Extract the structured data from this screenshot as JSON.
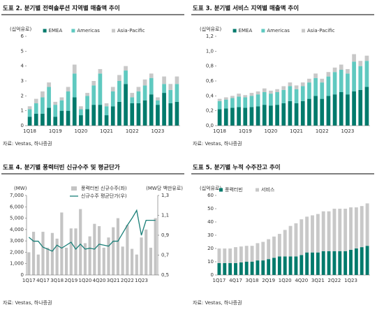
{
  "chart_data": [
    {
      "type": "bar",
      "stacked": true,
      "title": "도표 2. 분기별 전력솔루션 지역별 매출액 추이",
      "unit_label": "(십억유로)",
      "source": "자료: Vestas, 하나증권",
      "legend": "top",
      "categories": [
        "1Q18",
        null,
        null,
        null,
        "1Q19",
        null,
        null,
        null,
        "1Q20",
        null,
        null,
        null,
        "1Q21",
        null,
        null,
        null,
        "1Q22",
        null,
        null,
        null,
        "1Q23",
        null,
        null,
        null
      ],
      "series": [
        {
          "name": "EMEA",
          "color": "#007a6c",
          "values": [
            0.6,
            0.8,
            0.8,
            1.2,
            0.6,
            1.0,
            1.0,
            1.9,
            0.7,
            1.1,
            1.4,
            1.4,
            0.7,
            1.3,
            1.6,
            2.8,
            1.5,
            1.5,
            1.7,
            2.1,
            1.4,
            2.2,
            1.5,
            1.6
          ]
        },
        {
          "name": "Americas",
          "color": "#5fc9c0",
          "values": [
            0.5,
            0.7,
            1.1,
            1.4,
            0.8,
            0.7,
            1.3,
            1.6,
            0.4,
            0.9,
            1.3,
            2.1,
            0.6,
            1.0,
            1.4,
            0.9,
            0.4,
            0.8,
            1.0,
            1.1,
            0.3,
            0.6,
            0.9,
            1.2
          ]
        },
        {
          "name": "Asia-Pacific",
          "color": "#c8c8c8",
          "values": [
            0.2,
            0.3,
            0.4,
            0.3,
            0.2,
            0.2,
            0.3,
            0.6,
            0.2,
            0.2,
            0.3,
            0.3,
            0.2,
            0.3,
            0.4,
            0.3,
            0.3,
            0.3,
            0.4,
            0.3,
            0.2,
            0.5,
            0.4,
            0.5
          ]
        }
      ],
      "ylim": [
        0,
        6
      ],
      "yticks": [
        0,
        1,
        2,
        3,
        4,
        5,
        6
      ]
    },
    {
      "type": "bar",
      "stacked": true,
      "title": "도표 3. 분기별 서비스 지역별 매출액 추이",
      "unit_label": "(십억유로)",
      "source": "자료: Vestas, 하나증권",
      "legend": "top",
      "categories": [
        "1Q18",
        null,
        null,
        null,
        "1Q19",
        null,
        null,
        null,
        "1Q20",
        null,
        null,
        null,
        "1Q21",
        null,
        null,
        null,
        "1Q22",
        null,
        null,
        null,
        "1Q23",
        null,
        null,
        null
      ],
      "series": [
        {
          "name": "EMEA",
          "color": "#007a6c",
          "values": [
            0.22,
            0.23,
            0.24,
            0.25,
            0.24,
            0.25,
            0.26,
            0.28,
            0.27,
            0.28,
            0.3,
            0.33,
            0.3,
            0.33,
            0.36,
            0.4,
            0.36,
            0.4,
            0.42,
            0.45,
            0.42,
            0.46,
            0.48,
            0.52
          ]
        },
        {
          "name": "Americas",
          "color": "#5fc9c0",
          "values": [
            0.11,
            0.12,
            0.13,
            0.14,
            0.14,
            0.15,
            0.16,
            0.17,
            0.16,
            0.17,
            0.18,
            0.2,
            0.19,
            0.2,
            0.22,
            0.24,
            0.22,
            0.26,
            0.3,
            0.3,
            0.28,
            0.4,
            0.32,
            0.35
          ]
        },
        {
          "name": "Asia-Pacific",
          "color": "#c8c8c8",
          "values": [
            0.03,
            0.03,
            0.03,
            0.04,
            0.03,
            0.04,
            0.04,
            0.05,
            0.04,
            0.04,
            0.05,
            0.05,
            0.05,
            0.05,
            0.05,
            0.06,
            0.05,
            0.06,
            0.06,
            0.07,
            0.06,
            0.1,
            0.07,
            0.07
          ]
        }
      ],
      "ylim": [
        0,
        1.2
      ],
      "yticks": [
        {
          "value": 0,
          "label": "0,0"
        },
        {
          "value": 0.2,
          "label": "0,2"
        },
        {
          "value": 0.4,
          "label": "0,4"
        },
        {
          "value": 0.6,
          "label": "0,6"
        },
        {
          "value": 0.8,
          "label": "0,8"
        },
        {
          "value": 1.0,
          "label": "1,0"
        },
        {
          "value": 1.2,
          "label": "1,2"
        }
      ]
    },
    {
      "type": "combo",
      "title": "도표 4. 분기별 풍력터빈 신규수주 및 평균단가",
      "unit_label": "(MW)",
      "y2_label": "(MW당 백만유로)",
      "source": "자료: Vestas, 하나증권",
      "legend": "upper-center",
      "categories": [
        "1Q17",
        null,
        null,
        "4Q17",
        null,
        null,
        "3Q18",
        null,
        null,
        "2Q19",
        null,
        null,
        "1Q20",
        null,
        null,
        "4Q20",
        null,
        null,
        "3Q21",
        null,
        null,
        "2Q22",
        null,
        null,
        "1Q23",
        null,
        null,
        null
      ],
      "series": [
        {
          "name": "풍력터빈 신규수주(좌)",
          "color": "#c4c4c4",
          "values": [
            2000,
            3800,
            1800,
            3800,
            2400,
            3700,
            3200,
            5500,
            2400,
            4100,
            4100,
            5800,
            2800,
            3400,
            4500,
            4300,
            2400,
            3300,
            4200,
            5000,
            2500,
            4400,
            2300,
            1800,
            3300,
            4000,
            2400,
            5000
          ]
        },
        {
          "name": "신규수주 평균단가(우)",
          "color": "#1a7f78",
          "axis": "y2",
          "values": [
            0.88,
            0.84,
            0.84,
            0.78,
            0.76,
            0.74,
            0.8,
            0.77,
            0.8,
            0.83,
            0.76,
            0.81,
            0.76,
            0.77,
            0.76,
            0.81,
            0.8,
            0.79,
            0.84,
            0.84,
            0.92,
            1.0,
            1.07,
            1.15,
            0.9,
            1.05,
            1.05,
            1.05
          ]
        }
      ],
      "ylim": [
        0,
        7000
      ],
      "yticks": [
        0,
        {
          "value": 1000,
          "label": "1,000"
        },
        {
          "value": 2000,
          "label": "2,000"
        },
        {
          "value": 3000,
          "label": "3,000"
        },
        {
          "value": 4000,
          "label": "4,000"
        },
        {
          "value": 5000,
          "label": "5,000"
        },
        {
          "value": 6000,
          "label": "6,000"
        },
        {
          "value": 7000,
          "label": "7,000"
        }
      ],
      "y2lim": [
        0.5,
        1.3
      ],
      "y2ticks": [
        {
          "value": 0.5,
          "label": "0,5"
        },
        {
          "value": 0.7,
          "label": "0,7"
        },
        {
          "value": 0.9,
          "label": "0,9"
        },
        {
          "value": 1.1,
          "label": "1,1"
        },
        {
          "value": 1.3,
          "label": "1,3"
        }
      ]
    },
    {
      "type": "bar",
      "stacked": true,
      "title": "도표 5. 분기별 누적 수주잔고 추이",
      "unit_label": "(십억유로)",
      "source": "자료: Vestas, 하나증권",
      "legend": "top-left",
      "categories": [
        "1Q17",
        null,
        null,
        "4Q17",
        null,
        null,
        "3Q18",
        null,
        null,
        "2Q19",
        null,
        null,
        "1Q20",
        null,
        null,
        "4Q20",
        null,
        null,
        "3Q21",
        null,
        null,
        "2Q22",
        null,
        null,
        "1Q23",
        null,
        null,
        null
      ],
      "series": [
        {
          "name": "풍력터빈",
          "color": "#007a6c",
          "values": [
            9,
            9,
            9,
            9,
            9.5,
            10,
            10,
            11,
            11,
            12,
            13,
            14,
            14,
            14,
            14,
            15,
            17,
            17,
            17,
            18,
            18,
            18,
            18,
            18,
            19,
            20,
            21,
            22
          ]
        },
        {
          "name": "서비스",
          "color": "#c8c8c8",
          "values": [
            11,
            11,
            11,
            12,
            12,
            12,
            12,
            13,
            14,
            15,
            16,
            17,
            20,
            23,
            25,
            27,
            27,
            28,
            29,
            30,
            30,
            32,
            32,
            32,
            32,
            31,
            31,
            32
          ]
        }
      ],
      "ylim": [
        0,
        60
      ],
      "yticks": [
        0,
        10,
        20,
        30,
        40,
        50,
        60
      ]
    }
  ]
}
